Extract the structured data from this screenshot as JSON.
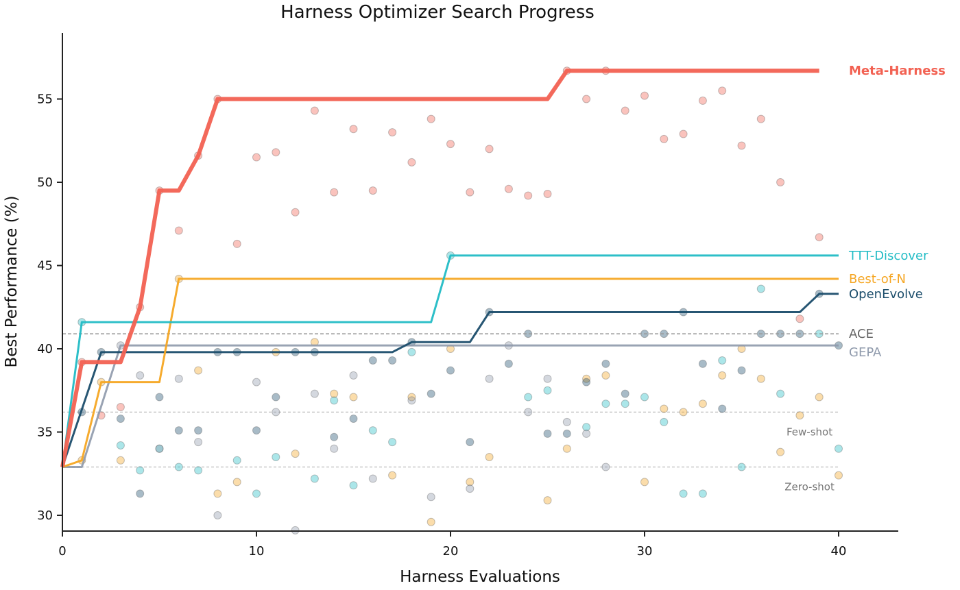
{
  "chart_data": {
    "type": "line",
    "title": "Harness Optimizer Search Progress",
    "xlabel": "Harness Evaluations",
    "ylabel": "Best Performance (%)",
    "xlim": [
      0,
      43
    ],
    "ylim": [
      29,
      59
    ],
    "xticks": [
      0,
      10,
      20,
      30,
      40
    ],
    "yticks": [
      30,
      35,
      40,
      45,
      50,
      55
    ],
    "grid": false,
    "legend": "labels at right end of lines",
    "reference_lines": [
      {
        "name": "Few-shot",
        "y": 36.2
      },
      {
        "name": "Zero-shot",
        "y": 32.9
      }
    ],
    "series": [
      {
        "name": "Meta-Harness",
        "color": "#f26152",
        "best_curve": [
          [
            0,
            32.9
          ],
          [
            1,
            39.2
          ],
          [
            3,
            39.2
          ],
          [
            4,
            42.5
          ],
          [
            5,
            49.5
          ],
          [
            6,
            49.5
          ],
          [
            7,
            51.6
          ],
          [
            8,
            55.0
          ],
          [
            25,
            55.0
          ],
          [
            26,
            56.7
          ],
          [
            39,
            56.7
          ]
        ],
        "points": [
          [
            1,
            39.2
          ],
          [
            2,
            36.0
          ],
          [
            3,
            36.5
          ],
          [
            4,
            42.5
          ],
          [
            5,
            49.5
          ],
          [
            6,
            47.1
          ],
          [
            7,
            51.6
          ],
          [
            8,
            55.0
          ],
          [
            9,
            46.3
          ],
          [
            10,
            51.5
          ],
          [
            11,
            51.8
          ],
          [
            12,
            48.2
          ],
          [
            13,
            54.3
          ],
          [
            14,
            49.4
          ],
          [
            15,
            53.2
          ],
          [
            16,
            49.5
          ],
          [
            17,
            53.0
          ],
          [
            18,
            51.2
          ],
          [
            19,
            53.8
          ],
          [
            20,
            52.3
          ],
          [
            21,
            49.4
          ],
          [
            22,
            52.0
          ],
          [
            23,
            49.6
          ],
          [
            24,
            49.2
          ],
          [
            25,
            49.3
          ],
          [
            26,
            56.7
          ],
          [
            27,
            55.0
          ],
          [
            28,
            56.7
          ],
          [
            29,
            54.3
          ],
          [
            30,
            55.2
          ],
          [
            31,
            52.6
          ],
          [
            32,
            52.9
          ],
          [
            33,
            54.9
          ],
          [
            34,
            55.5
          ],
          [
            35,
            52.2
          ],
          [
            36,
            53.8
          ],
          [
            37,
            50.0
          ],
          [
            38,
            41.8
          ],
          [
            39,
            46.7
          ]
        ]
      },
      {
        "name": "TTT-Discover",
        "color": "#22bcc5",
        "best_curve": [
          [
            0,
            32.9
          ],
          [
            1,
            41.6
          ],
          [
            19,
            41.6
          ],
          [
            20,
            45.6
          ],
          [
            40,
            45.6
          ]
        ],
        "points": [
          [
            1,
            41.6
          ],
          [
            3,
            34.2
          ],
          [
            4,
            32.7
          ],
          [
            5,
            34.0
          ],
          [
            6,
            32.9
          ],
          [
            7,
            32.7
          ],
          [
            9,
            33.3
          ],
          [
            10,
            31.3
          ],
          [
            11,
            33.5
          ],
          [
            13,
            32.2
          ],
          [
            14,
            36.9
          ],
          [
            15,
            31.8
          ],
          [
            16,
            35.1
          ],
          [
            17,
            34.4
          ],
          [
            18,
            39.8
          ],
          [
            20,
            45.6
          ],
          [
            24,
            37.1
          ],
          [
            25,
            37.5
          ],
          [
            27,
            35.3
          ],
          [
            28,
            36.7
          ],
          [
            29,
            36.7
          ],
          [
            30,
            37.1
          ],
          [
            31,
            35.6
          ],
          [
            32,
            31.3
          ],
          [
            33,
            31.3
          ],
          [
            34,
            39.3
          ],
          [
            35,
            32.9
          ],
          [
            36,
            43.6
          ],
          [
            37,
            37.3
          ],
          [
            39,
            40.9
          ],
          [
            40,
            34.0
          ]
        ]
      },
      {
        "name": "Best-of-N",
        "color": "#f5a623",
        "best_curve": [
          [
            0,
            32.9
          ],
          [
            1,
            33.3
          ],
          [
            2,
            38.0
          ],
          [
            5,
            38.0
          ],
          [
            6,
            44.2
          ],
          [
            40,
            44.2
          ]
        ],
        "points": [
          [
            1,
            33.3
          ],
          [
            2,
            38.0
          ],
          [
            3,
            33.3
          ],
          [
            6,
            44.2
          ],
          [
            7,
            38.7
          ],
          [
            8,
            31.3
          ],
          [
            9,
            32.0
          ],
          [
            11,
            39.8
          ],
          [
            12,
            33.7
          ],
          [
            13,
            40.4
          ],
          [
            14,
            37.3
          ],
          [
            15,
            37.1
          ],
          [
            17,
            32.4
          ],
          [
            18,
            37.1
          ],
          [
            19,
            29.6
          ],
          [
            20,
            40.0
          ],
          [
            21,
            32.0
          ],
          [
            22,
            33.5
          ],
          [
            25,
            30.9
          ],
          [
            26,
            34.0
          ],
          [
            27,
            38.2
          ],
          [
            28,
            38.4
          ],
          [
            30,
            32.0
          ],
          [
            31,
            36.4
          ],
          [
            32,
            36.2
          ],
          [
            33,
            36.7
          ],
          [
            34,
            38.4
          ],
          [
            35,
            40.0
          ],
          [
            36,
            38.2
          ],
          [
            37,
            33.8
          ],
          [
            38,
            36.0
          ],
          [
            39,
            37.1
          ],
          [
            40,
            32.4
          ]
        ]
      },
      {
        "name": "OpenEvolve",
        "color": "#1b4d6b",
        "best_curve": [
          [
            0,
            32.9
          ],
          [
            2,
            39.8
          ],
          [
            17,
            39.8
          ],
          [
            18,
            40.4
          ],
          [
            21,
            40.4
          ],
          [
            22,
            42.2
          ],
          [
            38,
            42.2
          ],
          [
            39,
            43.3
          ],
          [
            40,
            43.3
          ]
        ],
        "points": [
          [
            1,
            36.2
          ],
          [
            2,
            39.8
          ],
          [
            3,
            35.8
          ],
          [
            4,
            31.3
          ],
          [
            5,
            37.1
          ],
          [
            6,
            35.1
          ],
          [
            7,
            35.1
          ],
          [
            8,
            39.8
          ],
          [
            9,
            39.8
          ],
          [
            10,
            35.1
          ],
          [
            11,
            37.1
          ],
          [
            12,
            39.8
          ],
          [
            13,
            39.8
          ],
          [
            14,
            34.7
          ],
          [
            15,
            35.8
          ],
          [
            16,
            39.3
          ],
          [
            17,
            39.3
          ],
          [
            18,
            40.4
          ],
          [
            19,
            37.3
          ],
          [
            20,
            38.7
          ],
          [
            21,
            34.4
          ],
          [
            22,
            42.2
          ],
          [
            23,
            39.1
          ],
          [
            24,
            40.9
          ],
          [
            25,
            34.9
          ],
          [
            26,
            34.9
          ],
          [
            27,
            38.0
          ],
          [
            28,
            39.1
          ],
          [
            29,
            37.3
          ],
          [
            30,
            40.9
          ],
          [
            31,
            40.9
          ],
          [
            32,
            42.2
          ],
          [
            33,
            39.1
          ],
          [
            34,
            36.4
          ],
          [
            35,
            38.7
          ],
          [
            36,
            40.9
          ],
          [
            37,
            40.9
          ],
          [
            38,
            40.9
          ],
          [
            39,
            43.3
          ],
          [
            40,
            40.2
          ]
        ]
      },
      {
        "name": "ACE",
        "color": "#666666",
        "line_style": "dashed",
        "y": 40.9
      },
      {
        "name": "GEPA",
        "color": "#8e99ab",
        "best_curve": [
          [
            0,
            32.9
          ],
          [
            1,
            32.9
          ],
          [
            3,
            40.2
          ],
          [
            40,
            40.2
          ]
        ],
        "points": [
          [
            3,
            40.2
          ],
          [
            4,
            38.4
          ],
          [
            5,
            34.0
          ],
          [
            6,
            38.2
          ],
          [
            7,
            34.4
          ],
          [
            8,
            30.0
          ],
          [
            10,
            38.0
          ],
          [
            11,
            36.2
          ],
          [
            12,
            29.1
          ],
          [
            13,
            37.3
          ],
          [
            14,
            34.0
          ],
          [
            15,
            38.4
          ],
          [
            16,
            32.2
          ],
          [
            18,
            36.9
          ],
          [
            19,
            31.1
          ],
          [
            21,
            31.6
          ],
          [
            22,
            38.2
          ],
          [
            23,
            40.2
          ],
          [
            24,
            36.2
          ],
          [
            25,
            38.2
          ],
          [
            26,
            35.6
          ],
          [
            27,
            34.9
          ],
          [
            28,
            32.9
          ]
        ]
      }
    ]
  }
}
